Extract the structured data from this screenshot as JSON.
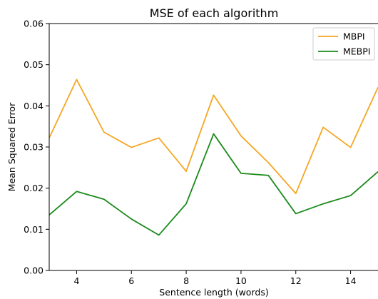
{
  "chart_data": {
    "type": "line",
    "title": "MSE of each algorithm",
    "xlabel": "Sentence length (words)",
    "ylabel": "Mean Squared Error",
    "x": [
      3,
      4,
      5,
      6,
      7,
      8,
      9,
      10,
      11,
      12,
      13,
      14,
      15
    ],
    "xlim": [
      3,
      15
    ],
    "ylim": [
      0.0,
      0.06
    ],
    "x_ticks": [
      "4",
      "6",
      "8",
      "10",
      "12",
      "14"
    ],
    "y_ticks": [
      "0.00",
      "0.01",
      "0.02",
      "0.03",
      "0.04",
      "0.05",
      "0.06"
    ],
    "grid": false,
    "legend_position": "top-right",
    "series": [
      {
        "name": "MBPI",
        "color": "#f5a623",
        "values": [
          0.0322,
          0.0464,
          0.0336,
          0.0299,
          0.0322,
          0.0241,
          0.0426,
          0.0327,
          0.0262,
          0.0187,
          0.0348,
          0.0299,
          0.0445
        ]
      },
      {
        "name": "MEBPI",
        "color": "#1a8a1a",
        "values": [
          0.0135,
          0.0192,
          0.0173,
          0.0125,
          0.0086,
          0.0162,
          0.0332,
          0.0236,
          0.0231,
          0.0138,
          0.0162,
          0.0182,
          0.024
        ]
      }
    ]
  }
}
